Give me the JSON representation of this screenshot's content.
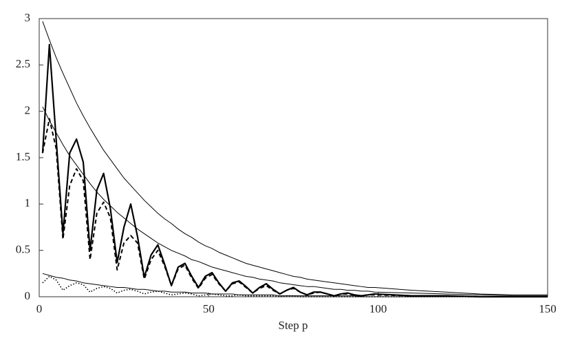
{
  "chart_data": {
    "type": "line",
    "x_label": "Step p",
    "xlim": [
      0,
      150
    ],
    "xticks": [
      0,
      50,
      100,
      150
    ],
    "ylim": [
      0,
      3
    ],
    "yticks": [
      0,
      0.5,
      1,
      1.5,
      2,
      2.5,
      3
    ],
    "x": [
      1,
      3,
      5,
      7,
      9,
      11,
      13,
      15,
      17,
      19,
      21,
      23,
      25,
      27,
      29,
      31,
      33,
      35,
      37,
      39,
      41,
      43,
      45,
      47,
      49,
      51,
      53,
      55,
      57,
      59,
      61,
      63,
      65,
      67,
      69,
      71,
      73,
      75,
      77,
      79,
      81,
      83,
      85,
      87,
      89,
      91,
      93,
      95,
      97,
      99,
      110,
      120,
      130,
      140,
      150
    ],
    "series": [
      {
        "color": "#000000",
        "style": "solid",
        "width": 1,
        "values": [
          2.97,
          2.77,
          2.58,
          2.41,
          2.25,
          2.09,
          1.95,
          1.82,
          1.7,
          1.58,
          1.48,
          1.38,
          1.28,
          1.2,
          1.12,
          1.04,
          0.97,
          0.9,
          0.84,
          0.79,
          0.73,
          0.68,
          0.64,
          0.59,
          0.55,
          0.52,
          0.48,
          0.45,
          0.42,
          0.39,
          0.36,
          0.34,
          0.32,
          0.3,
          0.28,
          0.26,
          0.24,
          0.22,
          0.21,
          0.19,
          0.18,
          0.17,
          0.16,
          0.15,
          0.14,
          0.13,
          0.12,
          0.11,
          0.1,
          0.1,
          0.07,
          0.05,
          0.03,
          0.02,
          0.02
        ]
      },
      {
        "color": "#000000",
        "style": "solid",
        "width": 1,
        "values": [
          2.05,
          1.9,
          1.77,
          1.64,
          1.52,
          1.42,
          1.32,
          1.22,
          1.13,
          1.05,
          0.98,
          0.91,
          0.85,
          0.79,
          0.73,
          0.68,
          0.63,
          0.58,
          0.54,
          0.5,
          0.47,
          0.44,
          0.4,
          0.38,
          0.35,
          0.32,
          0.3,
          0.28,
          0.26,
          0.24,
          0.22,
          0.21,
          0.19,
          0.18,
          0.17,
          0.15,
          0.14,
          0.13,
          0.12,
          0.11,
          0.11,
          0.1,
          0.09,
          0.08,
          0.08,
          0.07,
          0.07,
          0.06,
          0.06,
          0.05,
          0.04,
          0.03,
          0.02,
          0.01,
          0.01
        ]
      },
      {
        "color": "#000000",
        "style": "solid",
        "width": 1,
        "values": [
          0.25,
          0.23,
          0.21,
          0.2,
          0.18,
          0.17,
          0.15,
          0.14,
          0.13,
          0.12,
          0.11,
          0.1,
          0.1,
          0.09,
          0.08,
          0.08,
          0.07,
          0.06,
          0.06,
          0.05,
          0.05,
          0.05,
          0.04,
          0.04,
          0.04,
          0.03,
          0.03,
          0.03,
          0.03,
          0.02,
          0.02,
          0.02,
          0.02,
          0.02,
          0.02,
          0.01,
          0.01,
          0.01,
          0.01,
          0.01,
          0.01,
          0.01,
          0.01,
          0.01,
          0.01,
          0.01,
          0.01,
          0,
          0,
          0,
          0,
          0,
          0,
          0,
          0
        ]
      },
      {
        "color": "#000000",
        "style": "solid",
        "width": 2.2,
        "values": [
          1.55,
          2.72,
          1.7,
          0.68,
          1.55,
          1.7,
          1.45,
          0.5,
          1.15,
          1.33,
          0.95,
          0.37,
          0.75,
          1,
          0.65,
          0.21,
          0.45,
          0.56,
          0.35,
          0.12,
          0.32,
          0.36,
          0.22,
          0.1,
          0.22,
          0.26,
          0.15,
          0.06,
          0.15,
          0.17,
          0.11,
          0.04,
          0.1,
          0.14,
          0.08,
          0.03,
          0.07,
          0.1,
          0.05,
          0.02,
          0.05,
          0.05,
          0.03,
          0.01,
          0.03,
          0.04,
          0.02,
          0.01,
          0.02,
          0.03,
          0.01,
          0.01,
          0,
          0,
          0
        ]
      },
      {
        "color": "#000000",
        "style": "dashed",
        "width": 2,
        "values": [
          1.55,
          1.92,
          1.6,
          0.62,
          1.2,
          1.38,
          1.25,
          0.4,
          0.9,
          1.02,
          0.85,
          0.29,
          0.58,
          0.66,
          0.58,
          0.19,
          0.4,
          0.5,
          0.33,
          0.12,
          0.3,
          0.34,
          0.2,
          0.09,
          0.2,
          0.24,
          0.14,
          0.06,
          0.14,
          0.16,
          0.1,
          0.04,
          0.09,
          0.12,
          0.07,
          0.03,
          0.07,
          0.09,
          0.05,
          0.02,
          0.04,
          0.05,
          0.03,
          0.01,
          0.03,
          0.03,
          0.02,
          0.01,
          0.02,
          0.02,
          0.01,
          0.01,
          0,
          0,
          0
        ]
      },
      {
        "color": "#000000",
        "style": "dotted",
        "width": 1.6,
        "values": [
          0.15,
          0.22,
          0.18,
          0.07,
          0.12,
          0.15,
          0.13,
          0.05,
          0.09,
          0.11,
          0.09,
          0.04,
          0.07,
          0.08,
          0.06,
          0.03,
          0.05,
          0.06,
          0.04,
          0.02,
          0.03,
          0.04,
          0.03,
          0.01,
          0.02,
          0.03,
          0.02,
          0.01,
          0.01,
          0.02,
          0.01,
          0.01,
          0.01,
          0.01,
          0.01,
          0,
          0.01,
          0.01,
          0,
          0,
          0,
          0,
          0,
          0,
          0,
          0,
          0,
          0,
          0,
          0,
          0,
          0,
          0,
          0,
          0
        ]
      }
    ]
  }
}
